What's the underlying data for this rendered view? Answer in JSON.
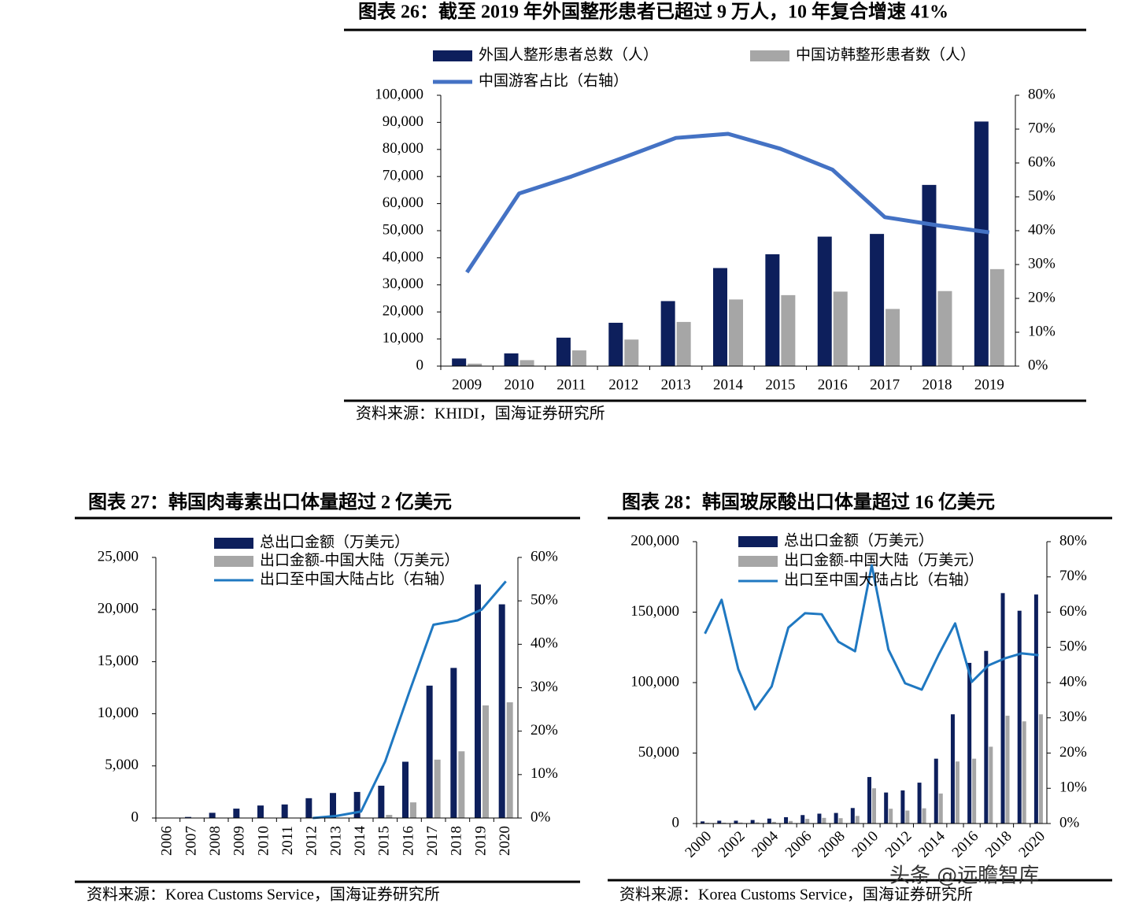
{
  "chart_data": [
    {
      "type": "bar",
      "title": "图表 26：截至 2019 年外国整形患者已超过 9 万人，10 年复合增速 41%",
      "source": "资料来源：KHIDI，国海证券研究所",
      "categories": [
        "2009",
        "2010",
        "2011",
        "2012",
        "2013",
        "2014",
        "2015",
        "2016",
        "2017",
        "2018",
        "2019"
      ],
      "series": [
        {
          "name": "外国人整形患者总数（人）",
          "color": "#0d1f5c",
          "values": [
            2800,
            4700,
            10500,
            16000,
            24000,
            36200,
            41300,
            47800,
            48800,
            66900,
            90300
          ]
        },
        {
          "name": "中国访韩整形患者数（人）",
          "color": "#a6a6a6",
          "values": [
            900,
            2200,
            5800,
            9800,
            16300,
            24600,
            26200,
            27500,
            21100,
            27700,
            35800
          ]
        },
        {
          "name": "中国游客占比（右轴）",
          "color": "#4472c4",
          "type": "line",
          "axis": "y2",
          "values": [
            27.7,
            51,
            56,
            61.6,
            67.4,
            68.6,
            64.2,
            58,
            44,
            41.6,
            39.5
          ]
        }
      ],
      "ylim": [
        0,
        100000
      ],
      "yticks": [
        0,
        {
          "value": 10000,
          "label": "10,000"
        },
        {
          "value": 20000,
          "label": "20,000"
        },
        {
          "value": 30000,
          "label": "30,000"
        },
        {
          "value": 40000,
          "label": "40,000"
        },
        {
          "value": 50000,
          "label": "50,000"
        },
        {
          "value": 60000,
          "label": "60,000"
        },
        {
          "value": 70000,
          "label": "70,000"
        },
        {
          "value": 80000,
          "label": "80,000"
        },
        {
          "value": 90000,
          "label": "90,000"
        },
        {
          "value": 100000,
          "label": "100,000"
        }
      ],
      "y2lim": [
        0,
        80
      ],
      "y2ticks": [
        {
          "value": 0,
          "label": "0%"
        },
        {
          "value": 10,
          "label": "10%"
        },
        {
          "value": 20,
          "label": "20%"
        },
        {
          "value": 30,
          "label": "30%"
        },
        {
          "value": 40,
          "label": "40%"
        },
        {
          "value": 50,
          "label": "50%"
        },
        {
          "value": 60,
          "label": "60%"
        },
        {
          "value": 70,
          "label": "70%"
        },
        {
          "value": 80,
          "label": "80%"
        }
      ]
    },
    {
      "type": "bar",
      "title": "图表 27：韩国肉毒素出口体量超过 2 亿美元",
      "source": "资料来源：Korea Customs Service，国海证券研究所",
      "categories": [
        "2006",
        "2007",
        "2008",
        "2009",
        "2010",
        "2011",
        "2012",
        "2013",
        "2014",
        "2015",
        "2016",
        "2017",
        "2018",
        "2019",
        "2020"
      ],
      "series": [
        {
          "name": "总出口金额（万美元）",
          "color": "#0d1f5c",
          "values": [
            0,
            100,
            500,
            900,
            1200,
            1300,
            1900,
            2400,
            2500,
            3100,
            5400,
            12700,
            14400,
            22400,
            20500
          ]
        },
        {
          "name": "出口金额-中国大陆（万美元）",
          "color": "#a6a6a6",
          "values": [
            0,
            0,
            0,
            0,
            0,
            0,
            0,
            0,
            0,
            300,
            1500,
            5600,
            6400,
            10800,
            11100
          ]
        },
        {
          "name": "出口至中国大陆占比（右轴）",
          "color": "#1f78c1",
          "type": "line",
          "axis": "y2",
          "values": [
            null,
            null,
            null,
            null,
            null,
            null,
            0,
            0.5,
            1.5,
            13,
            29,
            44.5,
            45.5,
            48,
            54.5
          ]
        }
      ],
      "ylim": [
        0,
        25000
      ],
      "yticks": [
        0,
        {
          "value": 5000,
          "label": "5,000"
        },
        {
          "value": 10000,
          "label": "10,000"
        },
        {
          "value": 15000,
          "label": "15,000"
        },
        {
          "value": 20000,
          "label": "20,000"
        },
        {
          "value": 25000,
          "label": "25,000"
        }
      ],
      "y2lim": [
        0,
        60
      ],
      "y2ticks": [
        {
          "value": 0,
          "label": "0%"
        },
        {
          "value": 10,
          "label": "10%"
        },
        {
          "value": 20,
          "label": "20%"
        },
        {
          "value": 30,
          "label": "30%"
        },
        {
          "value": 40,
          "label": "40%"
        },
        {
          "value": 50,
          "label": "50%"
        },
        {
          "value": 60,
          "label": "60%"
        }
      ]
    },
    {
      "type": "bar",
      "title": "图表 28：韩国玻尿酸出口体量超过 16 亿美元",
      "source": "资料来源：Korea Customs Service，国海证券研究所",
      "categories": [
        "2000",
        null,
        "2002",
        null,
        "2004",
        null,
        "2006",
        null,
        "2008",
        null,
        "2010",
        null,
        "2012",
        null,
        "2014",
        null,
        "2016",
        null,
        "2018",
        null,
        "2020"
      ],
      "series": [
        {
          "name": "总出口金额（万美元）",
          "color": "#0d1f5c",
          "values": [
            1500,
            2000,
            2000,
            2500,
            3500,
            4500,
            6000,
            7000,
            7500,
            11000,
            33000,
            22000,
            23500,
            29000,
            46000,
            77500,
            114000,
            122500,
            163500,
            151000,
            162500
          ]
        },
        {
          "name": "出口金额-中国大陆（万美元）",
          "color": "#a6a6a6",
          "values": [
            500,
            600,
            700,
            800,
            1200,
            1800,
            3300,
            4000,
            3800,
            5400,
            25000,
            10500,
            9200,
            10800,
            21300,
            44000,
            46000,
            54500,
            76500,
            72500,
            77500
          ]
        },
        {
          "name": "出口至中国大陆占比（右轴）",
          "color": "#1f78c1",
          "type": "line",
          "axis": "y2",
          "values": [
            53.9,
            63.5,
            43.8,
            32.4,
            38.9,
            55.6,
            59.7,
            59.4,
            51.6,
            48.9,
            73.3,
            49.4,
            39.8,
            38,
            47.8,
            56.8,
            40.2,
            44.9,
            46.9,
            48.3,
            47.8
          ]
        }
      ],
      "ylim": [
        0,
        200000
      ],
      "yticks": [
        0,
        {
          "value": 50000,
          "label": "50,000"
        },
        {
          "value": 100000,
          "label": "100,000"
        },
        {
          "value": 150000,
          "label": "150,000"
        },
        {
          "value": 200000,
          "label": "200,000"
        }
      ],
      "y2lim": [
        0,
        80
      ],
      "y2ticks": [
        {
          "value": 0,
          "label": "0%"
        },
        {
          "value": 10,
          "label": "10%"
        },
        {
          "value": 20,
          "label": "20%"
        },
        {
          "value": 30,
          "label": "30%"
        },
        {
          "value": 40,
          "label": "40%"
        },
        {
          "value": 50,
          "label": "50%"
        },
        {
          "value": 60,
          "label": "60%"
        },
        {
          "value": 70,
          "label": "70%"
        },
        {
          "value": 80,
          "label": "80%"
        }
      ]
    }
  ],
  "watermark": "头条 @远瞻智库"
}
